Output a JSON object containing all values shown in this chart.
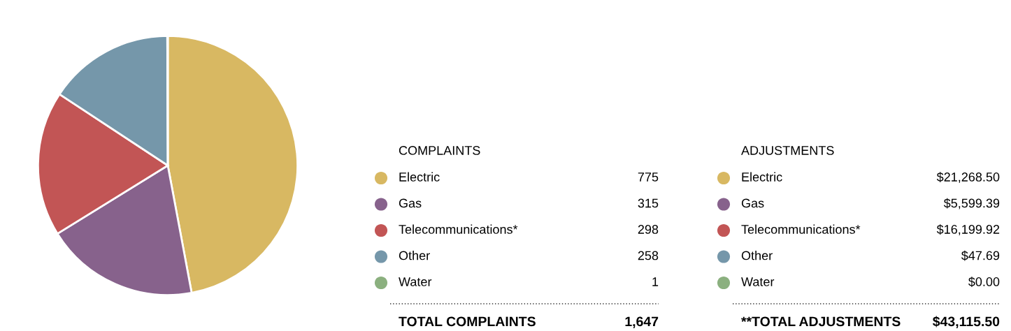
{
  "chart_data": [
    {
      "type": "pie",
      "title": "COMPLAINTS",
      "categories": [
        "Electric",
        "Gas",
        "Telecommunications*",
        "Other",
        "Water"
      ],
      "values": [
        775,
        315,
        298,
        258,
        1
      ],
      "colors": [
        "#d8b862",
        "#87628c",
        "#c25555",
        "#7597aa",
        "#8bb07f"
      ],
      "data_labels": true,
      "legend": "right",
      "annotations": [
        "TOTAL COMPLAINTS",
        "1,647"
      ]
    },
    {
      "type": "other",
      "title": "ADJUSTMENTS",
      "categories": [
        "Electric",
        "Gas",
        "Telecommunications*",
        "Other",
        "Water"
      ],
      "value_labels": [
        "$21,268.50",
        "$5,599.39",
        "$16,199.92",
        "$47.69",
        "$0.00"
      ],
      "colors": [
        "#d8b862",
        "#87628c",
        "#c25555",
        "#7597aa",
        "#8bb07f"
      ],
      "annotations": [
        "**TOTAL ADJUSTMENTS",
        "$43,115.50"
      ]
    }
  ]
}
